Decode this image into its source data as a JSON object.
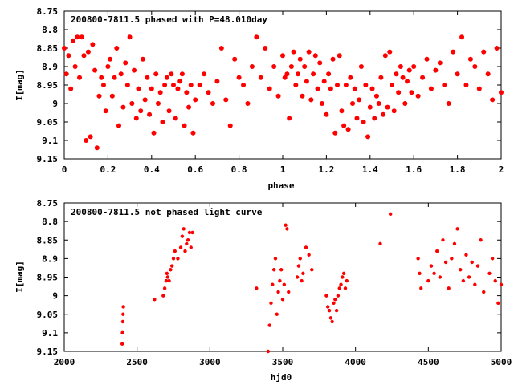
{
  "chart_data": [
    {
      "type": "scatter",
      "title": "200800-7811.5 phased with P=48.010day",
      "xlabel": "phase",
      "ylabel": "I[mag]",
      "xlim": [
        0,
        2
      ],
      "ylim": [
        9.15,
        8.75
      ],
      "y_inverted": true,
      "grid": false,
      "marker": "filled-circle",
      "color": "#ff0000",
      "x_ticks": [
        "0",
        "0.2",
        "0.4",
        "0.6",
        "0.8",
        "1",
        "1.2",
        "1.4",
        "1.6",
        "1.8",
        "2"
      ],
      "y_ticks": [
        "8.75",
        "8.8",
        "8.85",
        "8.9",
        "8.95",
        "9",
        "9.05",
        "9.1",
        "9.15"
      ],
      "series": [
        {
          "x": [
            0.0,
            0.01,
            0.02,
            0.03,
            0.04,
            0.05,
            0.06,
            0.07,
            0.08,
            0.09,
            0.1,
            0.11,
            0.12,
            0.13,
            0.14,
            0.15,
            0.16,
            0.17,
            0.18,
            0.19,
            0.2,
            0.21,
            0.22,
            0.23,
            0.24,
            0.25,
            0.26,
            0.27,
            0.28,
            0.29,
            0.3,
            0.31,
            0.32,
            0.33,
            0.34,
            0.35,
            0.36,
            0.37,
            0.38,
            0.39,
            0.4,
            0.41,
            0.42,
            0.43,
            0.44,
            0.45,
            0.46,
            0.47,
            0.48,
            0.49,
            0.5,
            0.51,
            0.52,
            0.53,
            0.54,
            0.55,
            0.56,
            0.57,
            0.58,
            0.59,
            0.6,
            0.62,
            0.64,
            0.66,
            0.68,
            0.7,
            0.72,
            0.74,
            0.76,
            0.78,
            0.8,
            0.82,
            0.84,
            0.86,
            0.88,
            0.9,
            0.92,
            0.94,
            0.96,
            0.98,
            1.0,
            1.01,
            1.02,
            1.03,
            1.04,
            1.05,
            1.06,
            1.07,
            1.08,
            1.09,
            1.1,
            1.11,
            1.12,
            1.13,
            1.14,
            1.15,
            1.16,
            1.17,
            1.18,
            1.19,
            1.2,
            1.21,
            1.22,
            1.23,
            1.24,
            1.25,
            1.26,
            1.27,
            1.28,
            1.29,
            1.3,
            1.31,
            1.32,
            1.33,
            1.34,
            1.35,
            1.36,
            1.37,
            1.38,
            1.39,
            1.4,
            1.41,
            1.42,
            1.43,
            1.44,
            1.45,
            1.46,
            1.47,
            1.48,
            1.49,
            1.5,
            1.51,
            1.52,
            1.53,
            1.54,
            1.55,
            1.56,
            1.57,
            1.58,
            1.59,
            1.6,
            1.62,
            1.64,
            1.66,
            1.68,
            1.7,
            1.72,
            1.74,
            1.76,
            1.78,
            1.8,
            1.82,
            1.84,
            1.86,
            1.88,
            1.9,
            1.92,
            1.94,
            1.96,
            1.98,
            2.0
          ],
          "y": [
            8.85,
            8.92,
            8.87,
            8.96,
            8.83,
            8.9,
            8.82,
            8.93,
            8.82,
            8.87,
            9.1,
            8.86,
            9.09,
            8.84,
            8.91,
            9.12,
            8.98,
            8.93,
            8.95,
            9.02,
            8.9,
            8.88,
            8.98,
            8.93,
            8.85,
            9.06,
            8.92,
            9.01,
            8.89,
            8.95,
            8.82,
            9.0,
            8.91,
            9.04,
            8.96,
            9.02,
            8.88,
            8.99,
            8.93,
            9.03,
            8.96,
            9.08,
            8.92,
            9.0,
            8.97,
            9.05,
            8.95,
            8.93,
            9.02,
            8.92,
            8.95,
            9.04,
            8.96,
            8.94,
            8.92,
            9.06,
            8.97,
            9.01,
            8.95,
            9.08,
            8.99,
            8.95,
            8.92,
            8.97,
            9.0,
            8.94,
            8.85,
            8.99,
            9.06,
            8.88,
            8.93,
            8.95,
            9.0,
            8.9,
            8.82,
            8.93,
            8.85,
            8.96,
            8.9,
            8.98,
            8.87,
            8.93,
            8.92,
            9.04,
            8.9,
            8.86,
            8.95,
            8.92,
            8.88,
            8.98,
            8.9,
            8.94,
            8.86,
            8.99,
            8.92,
            8.87,
            8.96,
            8.89,
            9.0,
            8.94,
            9.03,
            8.92,
            8.96,
            8.88,
            9.08,
            8.95,
            8.87,
            9.02,
            9.06,
            8.95,
            9.07,
            8.93,
            9.0,
            8.96,
            9.04,
            8.99,
            8.9,
            9.05,
            8.95,
            9.09,
            9.01,
            8.96,
            9.04,
            8.98,
            9.0,
            8.93,
            9.03,
            8.87,
            9.01,
            8.86,
            8.95,
            9.02,
            8.92,
            8.97,
            8.9,
            8.93,
            9.0,
            8.94,
            8.91,
            8.97,
            8.9,
            8.98,
            8.93,
            8.88,
            8.96,
            8.91,
            8.89,
            8.95,
            9.0,
            8.86,
            8.92,
            8.82,
            8.95,
            8.88,
            8.9,
            8.96,
            8.86,
            8.92,
            8.99,
            8.85,
            8.97
          ],
          "name": ""
        }
      ]
    },
    {
      "type": "scatter",
      "title": "200800-7811.5 not phased light curve",
      "xlabel": "hjd0",
      "ylabel": "I[mag]",
      "xlim": [
        2000,
        5000
      ],
      "ylim": [
        9.15,
        8.75
      ],
      "y_inverted": true,
      "grid": false,
      "marker": "filled-circle",
      "color": "#ff0000",
      "x_ticks": [
        "2000",
        "2500",
        "3000",
        "3500",
        "4000",
        "4500",
        "5000"
      ],
      "y_ticks": [
        "8.75",
        "8.8",
        "8.85",
        "8.9",
        "8.95",
        "9",
        "9.05",
        "9.1",
        "9.15"
      ],
      "series": [
        {
          "x": [
            2398,
            2400,
            2402,
            2404,
            2406,
            2620,
            2680,
            2690,
            2700,
            2705,
            2710,
            2720,
            2730,
            2740,
            2750,
            2760,
            2780,
            2800,
            2810,
            2820,
            2830,
            2840,
            2850,
            2860,
            2870,
            2880,
            3320,
            3400,
            3410,
            3420,
            3430,
            3440,
            3450,
            3460,
            3470,
            3480,
            3490,
            3500,
            3510,
            3520,
            3530,
            3540,
            3600,
            3610,
            3620,
            3630,
            3640,
            3660,
            3680,
            3700,
            3800,
            3810,
            3820,
            3830,
            3840,
            3850,
            3860,
            3870,
            3880,
            3890,
            3900,
            3910,
            3920,
            3930,
            3940,
            4170,
            4240,
            4430,
            4440,
            4450,
            4500,
            4520,
            4540,
            4560,
            4580,
            4600,
            4620,
            4640,
            4660,
            4680,
            4700,
            4720,
            4740,
            4760,
            4780,
            4800,
            4820,
            4840,
            4860,
            4880,
            4920,
            4940,
            4960,
            4980,
            5000
          ],
          "y": [
            9.13,
            9.1,
            9.07,
            9.05,
            9.03,
            9.01,
            9.0,
            8.98,
            8.96,
            8.94,
            8.95,
            8.96,
            8.93,
            8.92,
            8.9,
            8.88,
            8.9,
            8.87,
            8.84,
            8.82,
            8.88,
            8.86,
            8.85,
            8.83,
            8.87,
            8.83,
            8.98,
            9.15,
            9.08,
            9.02,
            8.97,
            8.93,
            8.9,
            9.05,
            8.99,
            8.96,
            8.93,
            9.01,
            8.97,
            8.81,
            8.82,
            8.99,
            8.95,
            8.92,
            8.9,
            8.96,
            8.94,
            8.87,
            8.89,
            8.93,
            9.0,
            9.03,
            9.04,
            9.06,
            9.07,
            9.02,
            9.01,
            9.04,
            9.0,
            8.98,
            8.97,
            8.95,
            8.94,
            8.98,
            8.96,
            8.86,
            8.78,
            8.9,
            8.94,
            8.98,
            8.96,
            8.92,
            8.94,
            8.88,
            8.95,
            8.85,
            8.91,
            8.98,
            8.9,
            8.86,
            8.82,
            8.93,
            8.96,
            8.89,
            8.95,
            8.91,
            8.97,
            8.92,
            8.85,
            8.99,
            8.94,
            8.9,
            8.96,
            9.02,
            8.97
          ],
          "name": ""
        }
      ]
    }
  ]
}
